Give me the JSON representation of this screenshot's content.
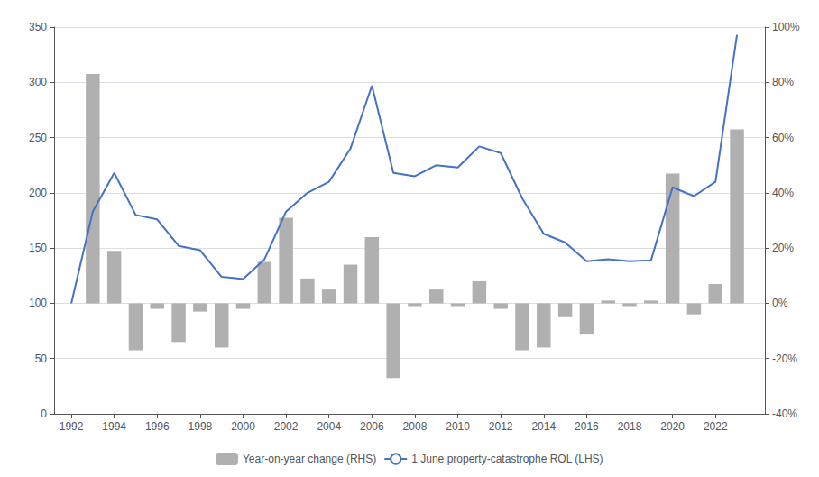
{
  "chart_data": {
    "type": "bar",
    "x": [
      1992,
      1993,
      1994,
      1995,
      1996,
      1997,
      1998,
      1999,
      2000,
      2001,
      2002,
      2003,
      2004,
      2005,
      2006,
      2007,
      2008,
      2009,
      2010,
      2011,
      2012,
      2013,
      2014,
      2015,
      2016,
      2017,
      2018,
      2019,
      2020,
      2021,
      2022,
      2023
    ],
    "series": [
      {
        "name": "Year-on-year change (RHS)",
        "type": "bar",
        "axis": "y2",
        "color": "#b0b0b0",
        "values": [
          null,
          83,
          19,
          -17,
          -2,
          -14,
          -3,
          -16,
          -2,
          15,
          31,
          9,
          5,
          14,
          24,
          -27,
          -1,
          5,
          -1,
          8,
          -2,
          -17,
          -16,
          -5,
          -11,
          1,
          -1,
          1,
          47,
          -4,
          7,
          63
        ]
      },
      {
        "name": "1 June property-catastrophe ROL (LHS)",
        "type": "line",
        "color": "#4472c4",
        "values": [
          100,
          183,
          218,
          180,
          176,
          152,
          148,
          124,
          122,
          140,
          183,
          200,
          210,
          240,
          297,
          218,
          215,
          225,
          223,
          242,
          236,
          195,
          163,
          155,
          138,
          140,
          138,
          139,
          205,
          197,
          210,
          343
        ]
      }
    ],
    "xlim": [
      1991.2,
      2024.3
    ],
    "xticks": [
      1992,
      1994,
      1996,
      1998,
      2000,
      2002,
      2004,
      2006,
      2008,
      2010,
      2012,
      2014,
      2016,
      2018,
      2020,
      2022
    ],
    "ylim": [
      0,
      350
    ],
    "yticks": [
      0,
      50,
      100,
      150,
      200,
      250,
      300,
      350
    ],
    "y2lim": [
      -40,
      100
    ],
    "y2ticks": [
      {
        "value": -40,
        "label": "-40%"
      },
      {
        "value": -20,
        "label": "-20%"
      },
      {
        "value": 0,
        "label": "0%"
      },
      {
        "value": 20,
        "label": "20%"
      },
      {
        "value": 40,
        "label": "40%"
      },
      {
        "value": 60,
        "label": "60%"
      },
      {
        "value": 80,
        "label": "80%"
      },
      {
        "value": 100,
        "label": "100%"
      }
    ],
    "grid": true,
    "legend": "bottom"
  }
}
